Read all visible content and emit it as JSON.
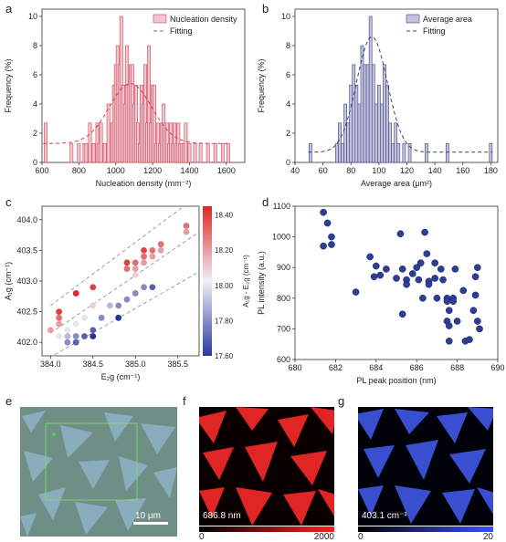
{
  "panel_labels": {
    "a": "a",
    "b": "b",
    "c": "c",
    "d": "d",
    "e": "e",
    "f": "f",
    "g": "g"
  },
  "chart_data": [
    {
      "type": "bar",
      "panel": "a",
      "xlabel": "Nucleation density (mm⁻²)",
      "ylabel": "Frequency (%)",
      "xlim": [
        600,
        1700
      ],
      "ylim": [
        0,
        10.5
      ],
      "xticks": [
        "600",
        "800",
        "1000",
        "1200",
        "1400",
        "1600"
      ],
      "yticks": [
        "0",
        "2",
        "4",
        "6",
        "8",
        "10"
      ],
      "legend": [
        "Nucleation density",
        "Fitting"
      ],
      "bars_x": [
        620,
        760,
        800,
        830,
        840,
        860,
        880,
        900,
        910,
        920,
        940,
        960,
        980,
        990,
        1000,
        1010,
        1020,
        1030,
        1040,
        1050,
        1060,
        1070,
        1080,
        1090,
        1100,
        1110,
        1120,
        1130,
        1140,
        1150,
        1160,
        1170,
        1180,
        1190,
        1200,
        1210,
        1220,
        1230,
        1240,
        1250,
        1260,
        1270,
        1280,
        1290,
        1300,
        1310,
        1320,
        1330,
        1340,
        1350,
        1360,
        1370,
        1380,
        1400,
        1430,
        1460,
        1500,
        1540,
        1580,
        1610
      ],
      "bars_y": [
        2.7,
        1.3,
        1.3,
        1.3,
        1.3,
        2.7,
        1.3,
        2.7,
        1.3,
        2.7,
        1.3,
        4,
        2.7,
        5.3,
        6.7,
        8,
        6.7,
        10,
        5.3,
        4,
        8,
        5.3,
        6.7,
        6.7,
        4,
        5.3,
        2.7,
        1.3,
        5.3,
        4,
        6.7,
        2.7,
        8,
        2.7,
        5.3,
        5.3,
        1.3,
        2.7,
        1.3,
        2.7,
        4,
        2.7,
        2.7,
        1.3,
        2.7,
        1.3,
        2.7,
        1.3,
        2.7,
        1.3,
        1.3,
        1.3,
        2.7,
        1.3,
        1.3,
        1.3,
        1.3,
        1.3,
        1.3,
        1.3
      ],
      "fit": {
        "center": 1080,
        "sigma": 115,
        "amplitude": 4.1,
        "baseline": 1.3
      }
    },
    {
      "type": "bar",
      "panel": "b",
      "xlabel": "Average area (μm²)",
      "ylabel": "Frequency (%)",
      "xlim": [
        40,
        185
      ],
      "ylim": [
        0,
        10.5
      ],
      "xticks": [
        "40",
        "60",
        "80",
        "100",
        "120",
        "140",
        "160",
        "180"
      ],
      "yticks": [
        "0",
        "2",
        "4",
        "6",
        "8",
        "10"
      ],
      "legend": [
        "Average area",
        "Fitting"
      ],
      "bars_x": [
        51,
        70,
        72,
        74,
        76,
        78,
        80,
        82,
        84,
        86,
        88,
        90,
        92,
        94,
        96,
        98,
        100,
        102,
        104,
        106,
        108,
        110,
        112,
        114,
        118,
        122,
        134,
        149,
        180
      ],
      "bars_y": [
        1.3,
        1.3,
        2.7,
        1.3,
        4,
        2.7,
        5.3,
        6.7,
        5.3,
        4,
        8,
        6.7,
        6.7,
        10,
        6.7,
        4,
        5.3,
        4,
        6.7,
        5.3,
        2.7,
        1.3,
        2.7,
        1.3,
        1.3,
        1.3,
        1.3,
        1.3,
        1.3
      ],
      "fit": {
        "center": 95,
        "sigma": 11,
        "amplitude": 7.9,
        "baseline": 0.7
      }
    },
    {
      "type": "scatter",
      "panel": "c",
      "xlabel": "E₂g (cm⁻¹)",
      "ylabel": "A₁g (cm⁻¹)",
      "xlim": [
        383.9,
        385.75
      ],
      "ylim": [
        401.78,
        404.22
      ],
      "xticks": [
        "384.0",
        "384.5",
        "385.0",
        "385.5"
      ],
      "yticks": [
        "402.0",
        "402.5",
        "403.0",
        "403.5",
        "404.0"
      ],
      "colorbar": {
        "label": "A₁g - E₂g (cm⁻¹)",
        "ticks": [
          "17.60",
          "17.80",
          "18.00",
          "18.20",
          "18.40"
        ],
        "range": [
          17.6,
          18.45
        ]
      },
      "points": [
        [
          384.0,
          402.2
        ],
        [
          384.1,
          402.1
        ],
        [
          384.1,
          402.3
        ],
        [
          384.1,
          402.5
        ],
        [
          384.1,
          402.4
        ],
        [
          384.2,
          402.0
        ],
        [
          384.2,
          402.1
        ],
        [
          384.2,
          402.2
        ],
        [
          384.3,
          402.0
        ],
        [
          384.3,
          402.1
        ],
        [
          384.3,
          402.3
        ],
        [
          384.3,
          402.8
        ],
        [
          384.4,
          402.1
        ],
        [
          384.4,
          402.4
        ],
        [
          384.5,
          402.1
        ],
        [
          384.5,
          402.2
        ],
        [
          384.5,
          402.6
        ],
        [
          384.5,
          402.9
        ],
        [
          384.6,
          402.4
        ],
        [
          384.7,
          402.6
        ],
        [
          384.8,
          402.4
        ],
        [
          384.8,
          402.6
        ],
        [
          384.9,
          402.7
        ],
        [
          384.9,
          403.2
        ],
        [
          384.9,
          403.3
        ],
        [
          385.0,
          402.8
        ],
        [
          385.0,
          403.1
        ],
        [
          385.0,
          403.2
        ],
        [
          385.0,
          403.3
        ],
        [
          385.1,
          402.9
        ],
        [
          385.1,
          403.4
        ],
        [
          385.1,
          403.5
        ],
        [
          385.1,
          403.3
        ],
        [
          385.2,
          402.9
        ],
        [
          385.2,
          403.4
        ],
        [
          385.2,
          403.5
        ],
        [
          385.3,
          403.5
        ],
        [
          385.3,
          403.6
        ],
        [
          385.6,
          403.8
        ],
        [
          385.6,
          403.9
        ]
      ]
    },
    {
      "type": "scatter",
      "panel": "d",
      "xlabel": "PL peak position (nm)",
      "ylabel": "PL intensity (a.u.)",
      "xlim": [
        680,
        690
      ],
      "ylim": [
        600,
        1100
      ],
      "xticks": [
        "680",
        "682",
        "684",
        "686",
        "688",
        "690"
      ],
      "yticks": [
        "600",
        "700",
        "800",
        "900",
        "1000",
        "1100"
      ],
      "points": [
        [
          681.4,
          1080
        ],
        [
          681.6,
          1045
        ],
        [
          681.8,
          1000
        ],
        [
          681.8,
          975
        ],
        [
          681.4,
          970
        ],
        [
          683.0,
          820
        ],
        [
          683.7,
          935
        ],
        [
          684.0,
          905
        ],
        [
          683.9,
          870
        ],
        [
          684.2,
          875
        ],
        [
          684.5,
          895
        ],
        [
          685.0,
          865
        ],
        [
          685.2,
          1010
        ],
        [
          685.3,
          895
        ],
        [
          685.3,
          748
        ],
        [
          685.5,
          860
        ],
        [
          685.5,
          845
        ],
        [
          685.8,
          880
        ],
        [
          686.0,
          900
        ],
        [
          686.1,
          860
        ],
        [
          686.2,
          915
        ],
        [
          686.3,
          800
        ],
        [
          686.4,
          1015
        ],
        [
          686.5,
          945
        ],
        [
          686.6,
          855
        ],
        [
          686.6,
          845
        ],
        [
          686.9,
          865
        ],
        [
          686.9,
          915
        ],
        [
          687.0,
          800
        ],
        [
          687.2,
          895
        ],
        [
          687.3,
          860
        ],
        [
          687.5,
          800
        ],
        [
          687.5,
          790
        ],
        [
          687.6,
          760
        ],
        [
          687.5,
          725
        ],
        [
          687.6,
          710
        ],
        [
          687.6,
          660
        ],
        [
          687.8,
          800
        ],
        [
          687.8,
          790
        ],
        [
          687.9,
          895
        ],
        [
          688.0,
          725
        ],
        [
          688.3,
          825
        ],
        [
          688.4,
          660
        ],
        [
          688.6,
          665
        ],
        [
          688.8,
          760
        ],
        [
          688.9,
          810
        ],
        [
          688.9,
          870
        ],
        [
          689.0,
          900
        ],
        [
          689.0,
          725
        ],
        [
          689.1,
          700
        ]
      ]
    }
  ],
  "images": {
    "e": {
      "scalebar": "10 μm"
    },
    "f": {
      "caption": "686.8 nm",
      "cb_min": "0",
      "cb_max": "2000",
      "color": "#e02525"
    },
    "g": {
      "caption": "403.1 cm⁻¹",
      "cb_min": "0",
      "cb_max": "20",
      "color": "#3a4fd0"
    }
  }
}
